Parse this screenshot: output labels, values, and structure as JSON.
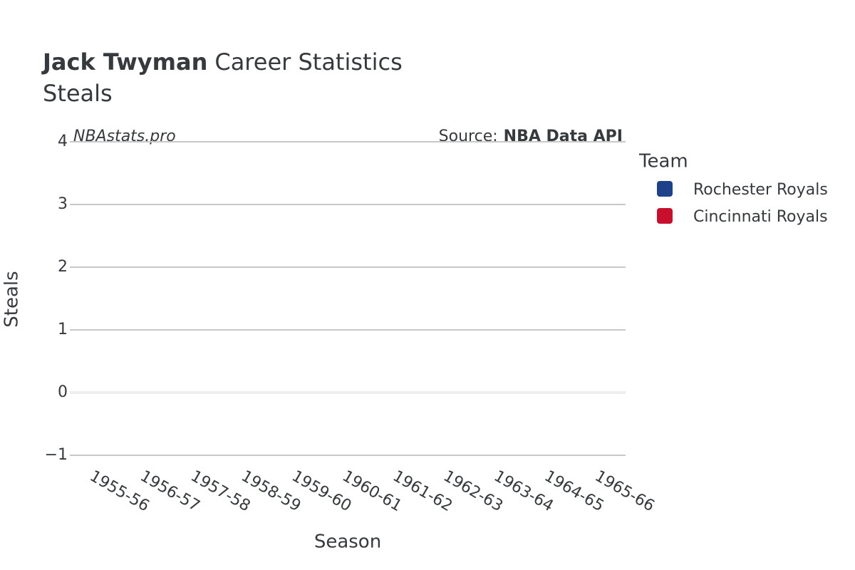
{
  "chart_data": {
    "type": "bar",
    "title_name": "Jack Twyman",
    "title": "Career Statistics",
    "subtitle": "Steals",
    "watermark": "NBAstats.pro",
    "source_label": "Source:",
    "source": "NBA Data API",
    "x_label": "Season",
    "y_label": "Steals",
    "legend_title": "Team",
    "categories": [
      "1955-56",
      "1956-57",
      "1957-58",
      "1958-59",
      "1959-60",
      "1960-61",
      "1961-62",
      "1962-63",
      "1963-64",
      "1964-65",
      "1965-66"
    ],
    "series": [
      {
        "name": "Rochester Royals",
        "color": "#1d428a",
        "values": [
          null,
          null,
          null,
          null,
          null,
          null,
          null,
          null,
          null,
          null,
          null
        ]
      },
      {
        "name": "Cincinnati Royals",
        "color": "#c8102e",
        "values": [
          null,
          null,
          null,
          null,
          null,
          null,
          null,
          null,
          null,
          null,
          null
        ]
      }
    ],
    "ylim": [
      -1,
      4
    ],
    "yticks": [
      {
        "value": -1,
        "label": "−1"
      },
      0,
      1,
      2,
      3,
      4
    ],
    "grid": true
  }
}
